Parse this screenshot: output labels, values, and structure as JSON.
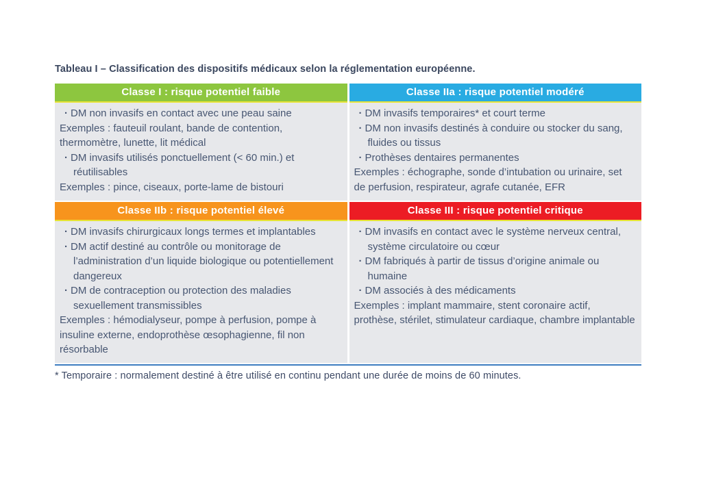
{
  "page": {
    "title": "Tableau I – Classification des dispositifs médicaux selon la réglementation européenne.",
    "footnote": "* Temporaire : normalement destiné à être utilisé en continu pendant une durée de moins de 60 minutes."
  },
  "colors": {
    "classe_1_header": "#8DC63F",
    "classe_2a_header": "#29ABE2",
    "classe_2b_header": "#F7941D",
    "classe_3_header": "#EC1C24",
    "header_underline": "#E8E436",
    "cell_background": "#E7E8EB",
    "body_text": "#475672",
    "bottom_rule": "#3C7CC0"
  },
  "table": {
    "cells": [
      {
        "id": "classe-1",
        "header": "Classe I : risque potentiel faible",
        "color": "#8DC63F",
        "items": [
          {
            "type": "bullet",
            "text": "DM non invasifs en contact avec une peau saine"
          },
          {
            "type": "example",
            "text": "Exemples : fauteuil roulant, bande de contention, thermomètre, lunette, lit médical"
          },
          {
            "type": "bullet",
            "text": "DM invasifs utilisés ponctuellement (< 60 min.) et réutilisables"
          },
          {
            "type": "example",
            "text": "Exemples : pince, ciseaux, porte-lame de bistouri"
          }
        ]
      },
      {
        "id": "classe-2a",
        "header": "Classe IIa : risque potentiel modéré",
        "color": "#29ABE2",
        "items": [
          {
            "type": "bullet",
            "text": "DM invasifs temporaires* et court terme"
          },
          {
            "type": "bullet",
            "text": "DM non invasifs destinés à conduire ou stocker du sang, fluides ou tissus"
          },
          {
            "type": "bullet",
            "text": "Prothèses dentaires permanentes"
          },
          {
            "type": "example",
            "text": "Exemples : échographe, sonde d’intubation ou urinaire, set de perfusion, respirateur, agrafe cutanée, EFR"
          }
        ]
      },
      {
        "id": "classe-2b",
        "header": "Classe IIb : risque potentiel élevé",
        "color": "#F7941D",
        "items": [
          {
            "type": "bullet",
            "text": "DM invasifs chirurgicaux longs termes et implantables"
          },
          {
            "type": "bullet",
            "text": "DM actif destiné au contrôle ou monitorage de l’administration d’un liquide biologique ou potentiellement dangereux"
          },
          {
            "type": "bullet",
            "text": "DM de contraception ou protection des maladies sexuellement transmissibles"
          },
          {
            "type": "example",
            "text": "Exemples : hémodialyseur, pompe à perfusion, pompe à insuline externe, endoprothèse œsophagienne, fil non résorbable"
          }
        ]
      },
      {
        "id": "classe-3",
        "header": "Classe III : risque potentiel critique",
        "color": "#EC1C24",
        "items": [
          {
            "type": "bullet",
            "text": "DM invasifs en contact avec le système nerveux central, système circulatoire ou cœur"
          },
          {
            "type": "bullet",
            "text": "DM fabriqués à partir de tissus d’origine animale ou humaine"
          },
          {
            "type": "bullet",
            "text": "DM associés à des médicaments"
          },
          {
            "type": "example",
            "text": "Exemples : implant mammaire, stent coronaire actif, prothèse, stérilet, stimulateur cardiaque, chambre implantable"
          }
        ]
      }
    ]
  }
}
